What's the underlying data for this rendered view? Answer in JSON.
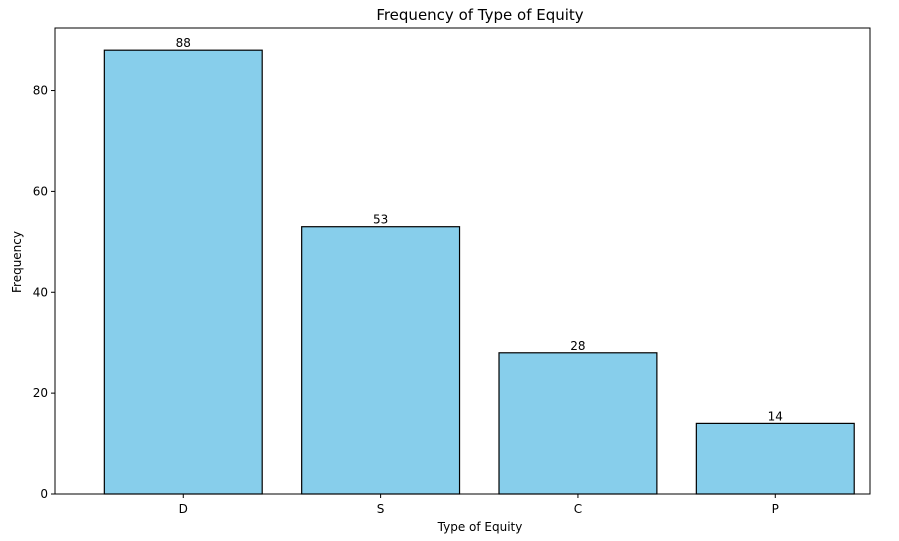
{
  "chart_data": {
    "type": "bar",
    "title": "Frequency of Type of Equity",
    "xlabel": "Type of Equity",
    "ylabel": "Frequency",
    "categories": [
      "D",
      "S",
      "C",
      "P"
    ],
    "values": [
      88,
      53,
      28,
      14
    ],
    "data_labels": [
      "88",
      "53",
      "28",
      "14"
    ],
    "ylim": [
      0,
      92.4
    ],
    "yticks": [
      0,
      20,
      40,
      60,
      80
    ],
    "ytick_labels": [
      "0",
      "20",
      "40",
      "60",
      "80"
    ],
    "grid": false,
    "bar_color": "#87CEEB",
    "edge_color": "#000000"
  }
}
